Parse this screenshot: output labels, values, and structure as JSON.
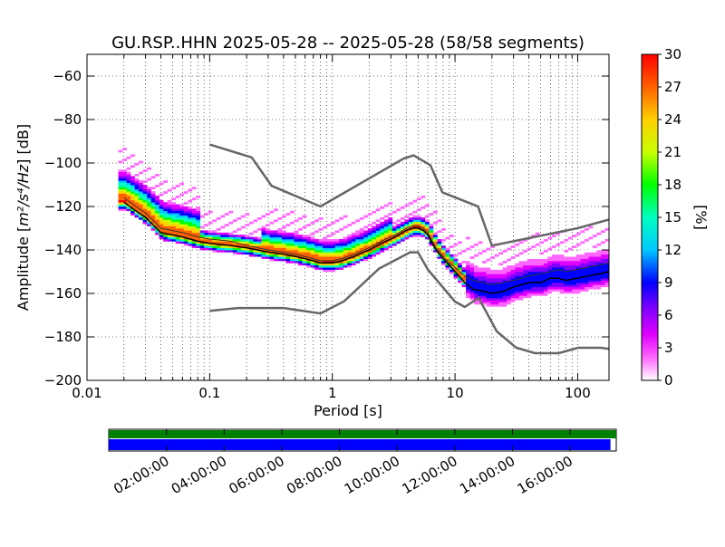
{
  "chart_data": {
    "type": "heatmap",
    "title": "GU.RSP..HHN   2025-05-28 -- 2025-05-28  (58/58 segments)",
    "xlabel": "Period [s]",
    "ylabel_prefix": "Amplitude [",
    "ylabel_math": "m²/s⁴/Hz",
    "ylabel_suffix": "] [dB]",
    "x_scale": "log",
    "xlim": [
      0.01,
      180
    ],
    "ylim": [
      -200,
      -50
    ],
    "x_ticks": [
      {
        "value": 0.01,
        "label": "0.01"
      },
      {
        "value": 0.1,
        "label": "0.1"
      },
      {
        "value": 1,
        "label": "1"
      },
      {
        "value": 10,
        "label": "10"
      },
      {
        "value": 100,
        "label": "100"
      }
    ],
    "y_ticks": [
      {
        "value": -60,
        "label": "−60"
      },
      {
        "value": -80,
        "label": "−80"
      },
      {
        "value": -100,
        "label": "−100"
      },
      {
        "value": -120,
        "label": "−120"
      },
      {
        "value": -140,
        "label": "−140"
      },
      {
        "value": -160,
        "label": "−160"
      },
      {
        "value": -180,
        "label": "−180"
      },
      {
        "value": -200,
        "label": "−200"
      }
    ],
    "grid": true,
    "colorbar": {
      "label": "[%]",
      "range": [
        0,
        30
      ],
      "ticks": [
        "0",
        "3",
        "6",
        "9",
        "12",
        "15",
        "18",
        "21",
        "24",
        "27",
        "30"
      ]
    },
    "noise_model_high": {
      "period": [
        0.1,
        0.22,
        0.32,
        0.8,
        3.8,
        4.6,
        6.3,
        7.9,
        15.4,
        20,
        100,
        180
      ],
      "db": [
        -91.5,
        -97.4,
        -110.5,
        -120,
        -98,
        -96.5,
        -101,
        -113.5,
        -120,
        -138,
        -130,
        -126
      ]
    },
    "noise_model_low": {
      "period": [
        0.1,
        0.17,
        0.4,
        0.8,
        1.24,
        2.4,
        4.3,
        5,
        6,
        10,
        12,
        15.6,
        21.9,
        31.6,
        45,
        70,
        101,
        154,
        180
      ],
      "db": [
        -168,
        -166.7,
        -166.7,
        -169.2,
        -163.7,
        -148.6,
        -141.1,
        -141.1,
        -149,
        -163.8,
        -166.2,
        -162.1,
        -177.5,
        -185,
        -187.5,
        -187.5,
        -185,
        -185,
        -185.5
      ]
    },
    "mode_curve": {
      "period": [
        0.02,
        0.025,
        0.03,
        0.04,
        0.06,
        0.08,
        0.1,
        0.15,
        0.2,
        0.3,
        0.4,
        0.5,
        0.6,
        0.7,
        0.8,
        1.0,
        1.2,
        1.5,
        2,
        2.5,
        3,
        3.5,
        4,
        4.5,
        5,
        5.5,
        6,
        6.5,
        7,
        8,
        9,
        10,
        12,
        14,
        17,
        20,
        25,
        30,
        40,
        50,
        60,
        70,
        80,
        100,
        120,
        150,
        180
      ],
      "db": [
        -118,
        -122,
        -125,
        -132,
        -134,
        -136,
        -137,
        -138,
        -139,
        -141,
        -142,
        -143,
        -144,
        -145,
        -146,
        -146,
        -145,
        -143,
        -140,
        -137,
        -135,
        -133,
        -131,
        -130,
        -130,
        -131,
        -133,
        -137,
        -140,
        -144,
        -147,
        -150,
        -155,
        -158,
        -159,
        -160,
        -159,
        -157,
        -155,
        -155,
        -153,
        -153,
        -154,
        -153,
        -152,
        -151,
        -150
      ]
    },
    "mean_curve": {
      "period": [
        0.02,
        0.025,
        0.03,
        0.04,
        0.06,
        0.08,
        0.1,
        0.15,
        0.2,
        0.3,
        0.4,
        0.5,
        0.6,
        0.7,
        0.8,
        1.0,
        1.2,
        1.5,
        2,
        2.5,
        3,
        3.5,
        4,
        4.5,
        5,
        5.5,
        6,
        6.5,
        7,
        8,
        9,
        10,
        12,
        14,
        17,
        20,
        25,
        30,
        40,
        50,
        60,
        70,
        80,
        100,
        120,
        150,
        180
      ],
      "db": [
        -116,
        -120,
        -123,
        -130,
        -132,
        -134,
        -135,
        -136,
        -138,
        -140,
        -141,
        -142,
        -143,
        -144,
        -145,
        -145,
        -144,
        -142,
        -139,
        -136,
        -134,
        -132,
        -130,
        -129,
        -129,
        -130,
        -132,
        -136,
        -139,
        -143,
        -146,
        -148,
        -152,
        -154,
        -155,
        -156,
        -155,
        -154,
        -152,
        -151,
        -150,
        -149,
        -150,
        -149,
        -148,
        -147,
        -146
      ]
    },
    "timeline": {
      "tick_labels": [
        "02:00:00",
        "04:00:00",
        "06:00:00",
        "08:00:00",
        "10:00:00",
        "12:00:00",
        "14:00:00",
        "16:00:00"
      ],
      "tick_hours": [
        2,
        4,
        6,
        8,
        10,
        12,
        14,
        16
      ],
      "span_hours": [
        0,
        17.6
      ],
      "data_available_until_hours": 17.6,
      "psd_coverage_until_hours": 17.4,
      "data_color": "#008000",
      "coverage_color": "#0000ff"
    },
    "colors": {
      "noise_models": "#666666",
      "mode_curve": "#000000",
      "mean_curve": "#333333",
      "grid": "#000000"
    }
  }
}
